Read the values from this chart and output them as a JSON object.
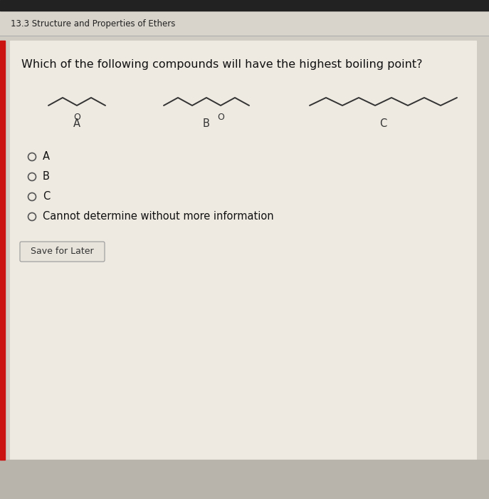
{
  "title": "13.3 Structure and Properties of Ethers",
  "question": "Which of the following compounds will have the highest boiling point?",
  "outer_bg": "#d0ccc4",
  "top_bar_bg": "#222222",
  "card_bg": "#eeeae2",
  "title_bg": "#d8d4cc",
  "title_color": "#222222",
  "question_color": "#111111",
  "options": [
    "A",
    "B",
    "C",
    "Cannot determine without more information"
  ],
  "save_button_text": "Save for Later",
  "molecule_color": "#333333",
  "label_color": "#333333",
  "red_bar_color": "#cc1111",
  "card_border_color": "#bbbbbb",
  "title_fontsize": 8.5,
  "question_fontsize": 11.5,
  "option_fontsize": 10.5,
  "label_fontsize": 10.5,
  "molecule_lw": 1.4
}
